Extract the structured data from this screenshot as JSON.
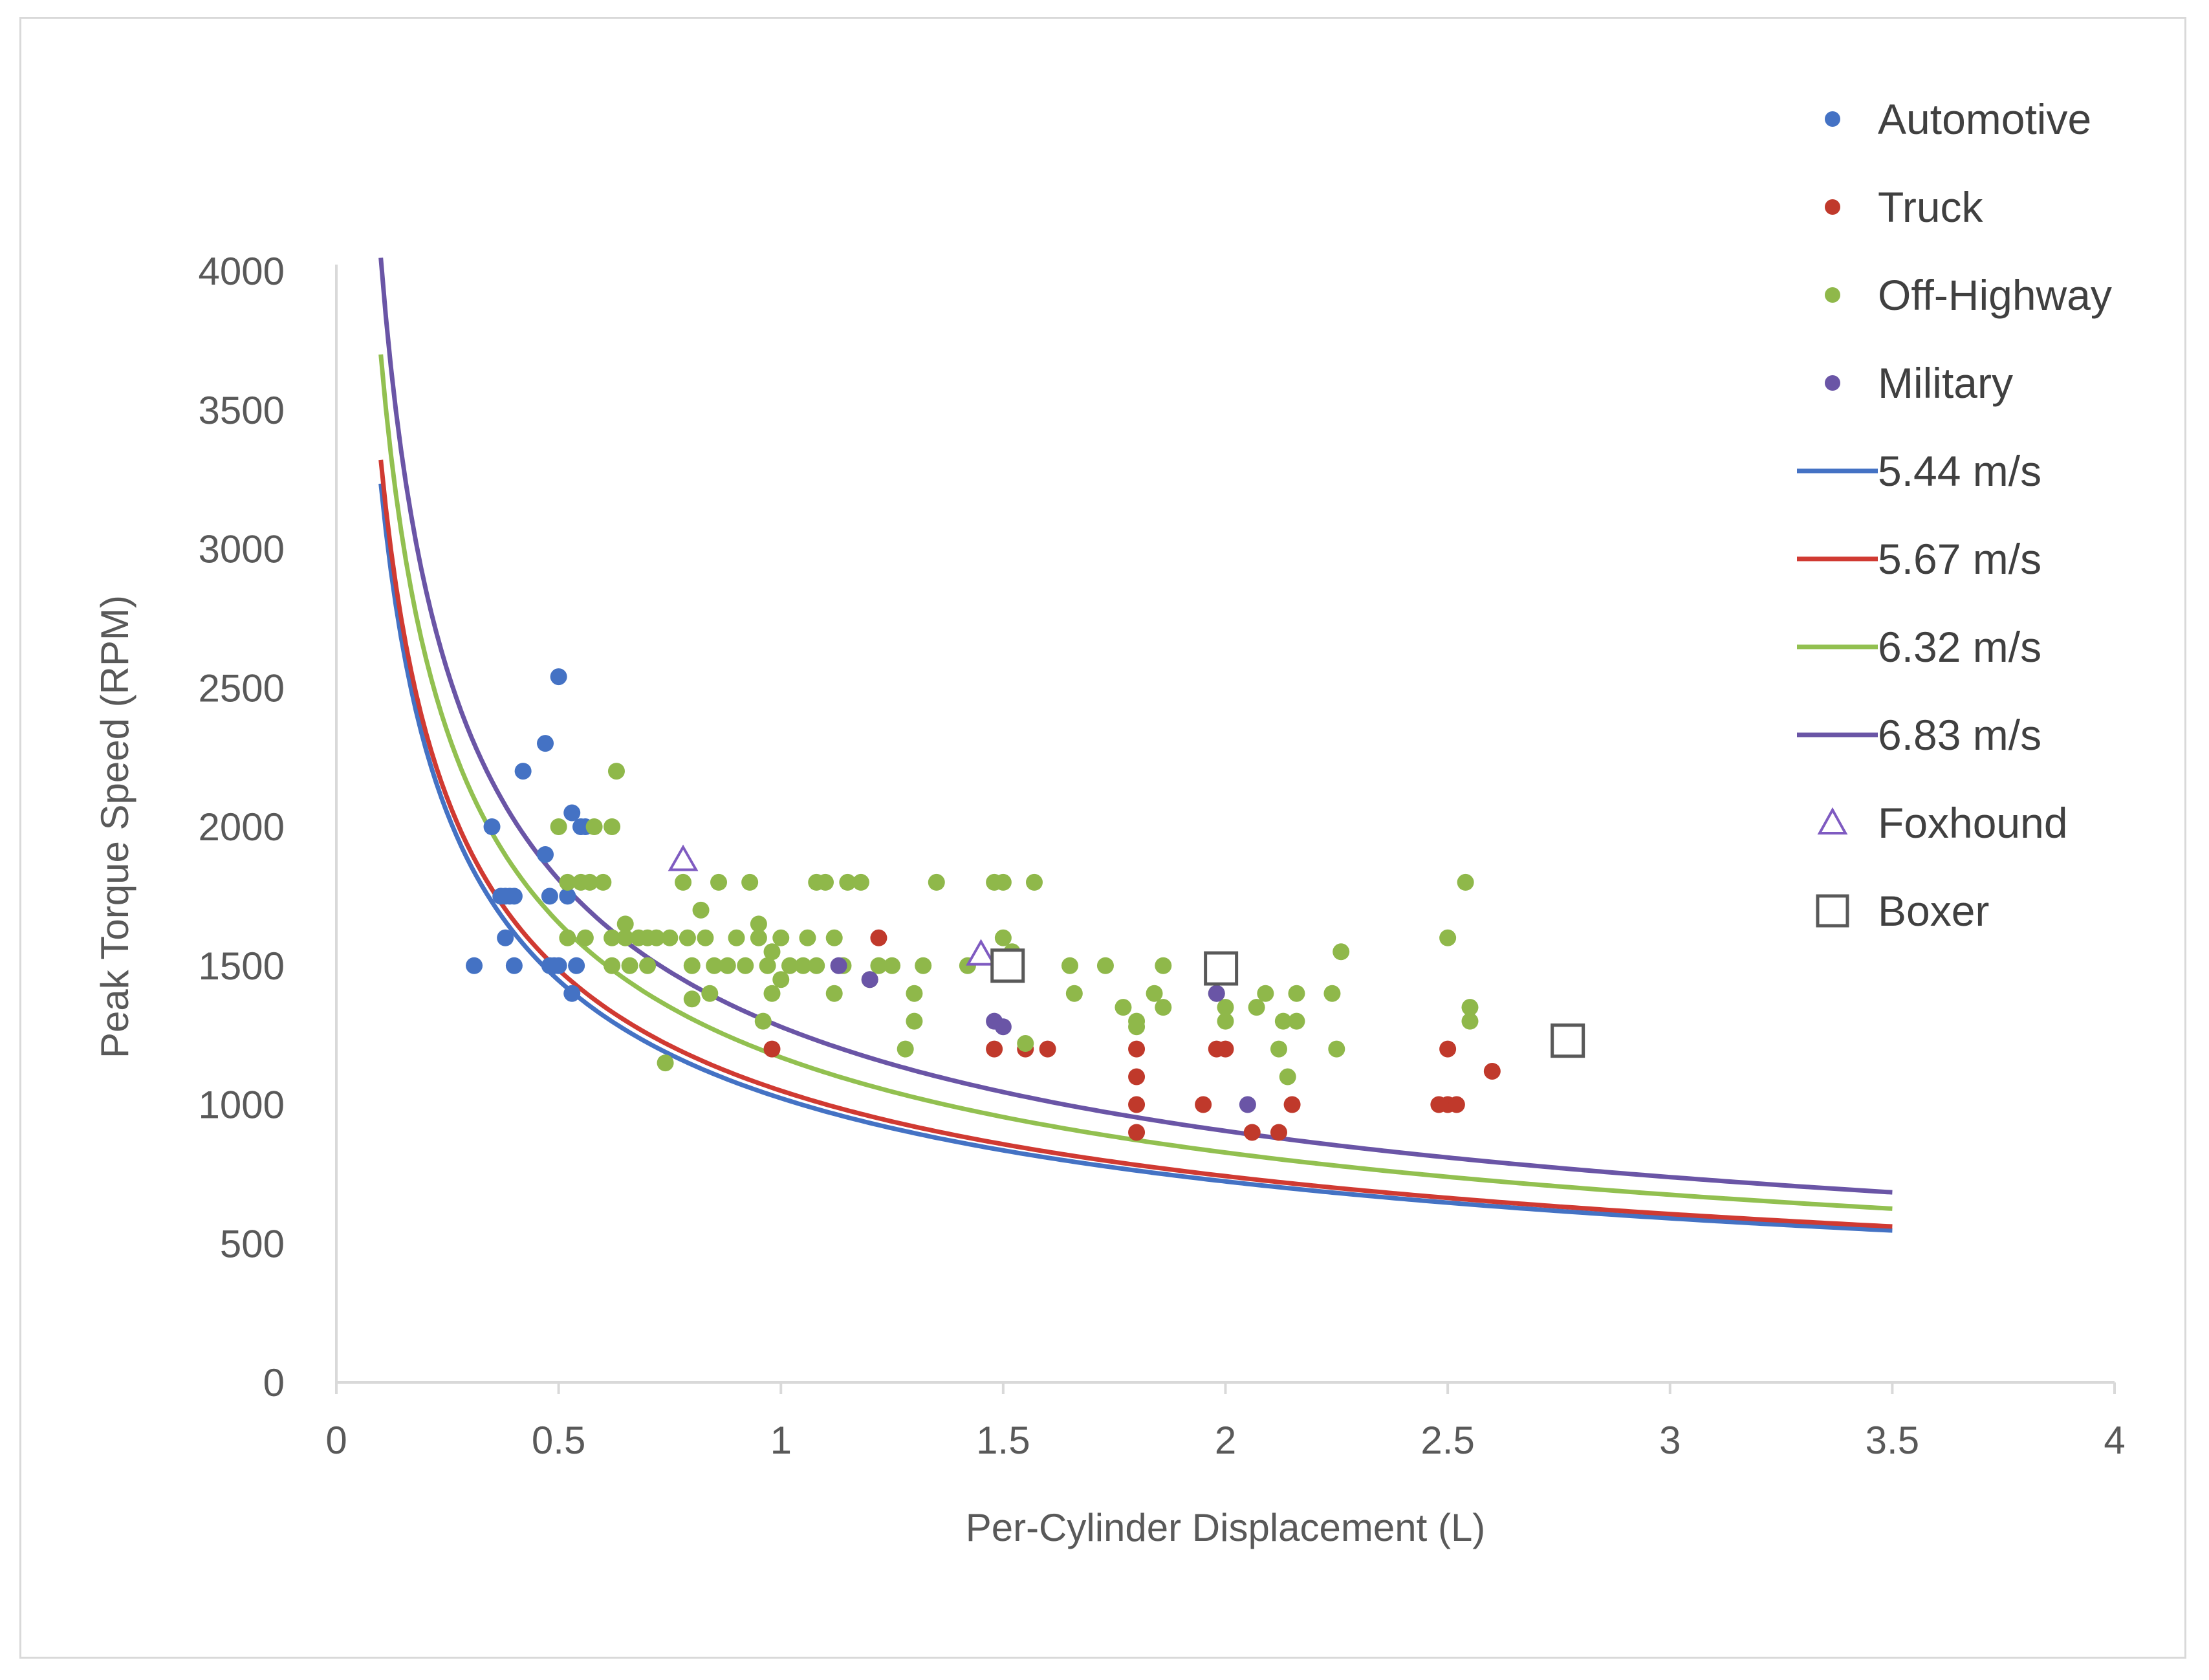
{
  "colors": {
    "automotive": "#4472c4",
    "truck": "#c0392b",
    "offhighway": "#8fb84a",
    "military": "#6a55a6",
    "line_544": "#4472c4",
    "line_567": "#d03a32",
    "line_632": "#92c050",
    "line_683": "#6a55a6",
    "foxhound": "#7f5bc1",
    "boxer": "#595959",
    "axis": "#d9d9d9",
    "text": "#595959"
  },
  "chart_data": {
    "type": "scatter",
    "title": "",
    "xlabel": "Per-Cylinder Displacement (L)",
    "ylabel": "Peak Torque Speed (RPM)",
    "xlim": [
      0,
      4
    ],
    "ylim": [
      0,
      4000
    ],
    "x_ticks": [
      "0",
      "0.5",
      "1",
      "1.5",
      "2",
      "2.5",
      "3",
      "3.5",
      "4"
    ],
    "y_ticks": [
      "0",
      "500",
      "1000",
      "1500",
      "2000",
      "2500",
      "3000",
      "3500",
      "4000"
    ],
    "legend_position": "top-right",
    "series": [
      {
        "name": "Automotive",
        "kind": "points",
        "color_key": "automotive",
        "points": [
          [
            0.31,
            1500
          ],
          [
            0.35,
            2000
          ],
          [
            0.37,
            1750
          ],
          [
            0.38,
            1750
          ],
          [
            0.38,
            1600
          ],
          [
            0.39,
            1750
          ],
          [
            0.4,
            1750
          ],
          [
            0.4,
            1500
          ],
          [
            0.42,
            2200
          ],
          [
            0.47,
            1900
          ],
          [
            0.47,
            2300
          ],
          [
            0.48,
            1750
          ],
          [
            0.48,
            1500
          ],
          [
            0.49,
            1500
          ],
          [
            0.5,
            2540
          ],
          [
            0.5,
            1500
          ],
          [
            0.52,
            1750
          ],
          [
            0.53,
            1400
          ],
          [
            0.54,
            1500
          ],
          [
            0.55,
            2000
          ],
          [
            0.56,
            2000
          ],
          [
            0.53,
            2050
          ]
        ]
      },
      {
        "name": "Truck",
        "kind": "points",
        "color_key": "truck",
        "points": [
          [
            0.98,
            1200
          ],
          [
            1.22,
            1600
          ],
          [
            1.48,
            1200
          ],
          [
            1.55,
            1200
          ],
          [
            1.6,
            1200
          ],
          [
            1.8,
            1200
          ],
          [
            1.8,
            1100
          ],
          [
            1.8,
            1000
          ],
          [
            1.8,
            900
          ],
          [
            1.95,
            1000
          ],
          [
            2.0,
            1200
          ],
          [
            1.98,
            1200
          ],
          [
            2.06,
            900
          ],
          [
            2.12,
            900
          ],
          [
            2.15,
            1000
          ],
          [
            2.48,
            1000
          ],
          [
            2.5,
            1000
          ],
          [
            2.52,
            1000
          ],
          [
            2.5,
            1200
          ],
          [
            2.6,
            1120
          ]
        ]
      },
      {
        "name": "Off-Highway",
        "kind": "points",
        "color_key": "offhighway",
        "points": [
          [
            0.5,
            2000
          ],
          [
            0.52,
            1800
          ],
          [
            0.52,
            1600
          ],
          [
            0.55,
            1800
          ],
          [
            0.56,
            1600
          ],
          [
            0.57,
            1800
          ],
          [
            0.58,
            2000
          ],
          [
            0.6,
            1800
          ],
          [
            0.62,
            1600
          ],
          [
            0.62,
            1500
          ],
          [
            0.62,
            2000
          ],
          [
            0.63,
            2200
          ],
          [
            0.65,
            1650
          ],
          [
            0.65,
            1600
          ],
          [
            0.66,
            1500
          ],
          [
            0.68,
            1600
          ],
          [
            0.7,
            1600
          ],
          [
            0.7,
            1500
          ],
          [
            0.72,
            1600
          ],
          [
            0.74,
            1150
          ],
          [
            0.75,
            1600
          ],
          [
            0.78,
            1800
          ],
          [
            0.79,
            1600
          ],
          [
            0.8,
            1500
          ],
          [
            0.8,
            1380
          ],
          [
            0.82,
            1700
          ],
          [
            0.83,
            1600
          ],
          [
            0.84,
            1400
          ],
          [
            0.85,
            1500
          ],
          [
            0.86,
            1800
          ],
          [
            0.88,
            1500
          ],
          [
            0.9,
            1600
          ],
          [
            0.92,
            1500
          ],
          [
            0.93,
            1800
          ],
          [
            0.95,
            1600
          ],
          [
            0.95,
            1650
          ],
          [
            0.96,
            1300
          ],
          [
            0.97,
            1500
          ],
          [
            0.98,
            1550
          ],
          [
            0.98,
            1400
          ],
          [
            1.0,
            1450
          ],
          [
            1.0,
            1600
          ],
          [
            1.02,
            1500
          ],
          [
            1.05,
            1500
          ],
          [
            1.06,
            1600
          ],
          [
            1.08,
            1500
          ],
          [
            1.08,
            1800
          ],
          [
            1.1,
            1800
          ],
          [
            1.12,
            1400
          ],
          [
            1.12,
            1600
          ],
          [
            1.14,
            1500
          ],
          [
            1.15,
            1800
          ],
          [
            1.18,
            1800
          ],
          [
            1.2,
            1450
          ],
          [
            1.22,
            1500
          ],
          [
            1.25,
            1500
          ],
          [
            1.28,
            1200
          ],
          [
            1.3,
            1300
          ],
          [
            1.3,
            1400
          ],
          [
            1.32,
            1500
          ],
          [
            1.35,
            1800
          ],
          [
            1.42,
            1500
          ],
          [
            1.48,
            1800
          ],
          [
            1.5,
            1800
          ],
          [
            1.5,
            1600
          ],
          [
            1.52,
            1550
          ],
          [
            1.55,
            1220
          ],
          [
            1.57,
            1800
          ],
          [
            1.65,
            1500
          ],
          [
            1.66,
            1400
          ],
          [
            1.73,
            1500
          ],
          [
            1.77,
            1350
          ],
          [
            1.8,
            1300
          ],
          [
            1.8,
            1280
          ],
          [
            1.84,
            1400
          ],
          [
            1.86,
            1500
          ],
          [
            1.86,
            1350
          ],
          [
            1.98,
            1400
          ],
          [
            2.0,
            1300
          ],
          [
            2.0,
            1350
          ],
          [
            2.07,
            1350
          ],
          [
            2.09,
            1400
          ],
          [
            2.12,
            1200
          ],
          [
            2.13,
            1300
          ],
          [
            2.14,
            1100
          ],
          [
            2.16,
            1400
          ],
          [
            2.16,
            1300
          ],
          [
            2.24,
            1400
          ],
          [
            2.25,
            1200
          ],
          [
            2.26,
            1550
          ],
          [
            2.5,
            1600
          ],
          [
            2.54,
            1800
          ],
          [
            2.55,
            1350
          ],
          [
            2.55,
            1300
          ]
        ]
      },
      {
        "name": "Military",
        "kind": "points",
        "color_key": "military",
        "points": [
          [
            1.13,
            1500
          ],
          [
            1.2,
            1450
          ],
          [
            1.48,
            1300
          ],
          [
            1.5,
            1280
          ],
          [
            1.98,
            1400
          ],
          [
            2.05,
            1000
          ]
        ]
      },
      {
        "name": "5.44 m/s",
        "kind": "curve",
        "color_key": "line_544",
        "k": 1023,
        "x_range": [
          0.1,
          3.5
        ]
      },
      {
        "name": "5.67 m/s",
        "kind": "curve",
        "color_key": "line_567",
        "k": 1050,
        "x_range": [
          0.1,
          3.5
        ]
      },
      {
        "name": "6.32 m/s",
        "kind": "curve",
        "color_key": "line_632",
        "k": 1170,
        "x_range": [
          0.1,
          3.5
        ]
      },
      {
        "name": "6.83 m/s",
        "kind": "curve",
        "color_key": "line_683",
        "k": 1280,
        "x_range": [
          0.1,
          3.5
        ]
      },
      {
        "name": "Foxhound",
        "kind": "triangles",
        "color_key": "foxhound",
        "points": [
          [
            0.78,
            1880
          ],
          [
            1.45,
            1540
          ]
        ]
      },
      {
        "name": "Boxer",
        "kind": "squares",
        "color_key": "boxer",
        "points": [
          [
            1.51,
            1500
          ],
          [
            1.99,
            1490
          ],
          [
            2.77,
            1230
          ]
        ]
      }
    ]
  }
}
